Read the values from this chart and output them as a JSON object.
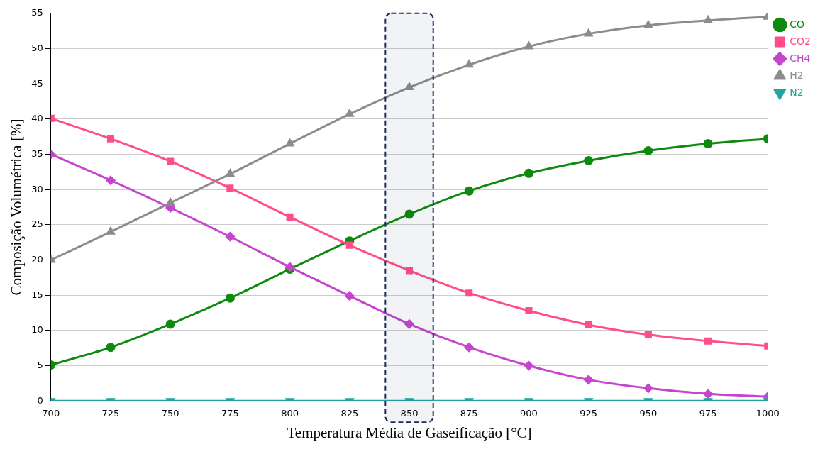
{
  "chart_data": {
    "type": "line",
    "xlabel": "Temperatura Média de Gaseificação [°C]",
    "ylabel": "Composição Volumétrica [%]",
    "x": [
      700,
      725,
      750,
      775,
      800,
      825,
      850,
      875,
      900,
      925,
      950,
      975,
      1000
    ],
    "xlim": [
      700,
      1000
    ],
    "xticks": [
      700,
      725,
      750,
      775,
      800,
      825,
      850,
      875,
      900,
      925,
      950,
      975,
      1000
    ],
    "ylim": [
      0,
      55
    ],
    "yticks": [
      0,
      5,
      10,
      15,
      20,
      25,
      30,
      35,
      40,
      45,
      50,
      55
    ],
    "grid": "y",
    "legend": "top right",
    "line_style": "solid",
    "series": [
      {
        "name": "CO",
        "color": "#0e8a0e",
        "marker": "circle",
        "values": [
          5.1,
          7.6,
          10.9,
          14.6,
          18.7,
          22.7,
          26.5,
          29.8,
          32.3,
          34.1,
          35.5,
          36.5,
          37.2
        ]
      },
      {
        "name": "CO2",
        "color": "#ff4d88",
        "marker": "square",
        "values": [
          40.1,
          37.2,
          34.0,
          30.2,
          26.1,
          22.1,
          18.5,
          15.3,
          12.8,
          10.8,
          9.4,
          8.5,
          7.8
        ]
      },
      {
        "name": "CH4",
        "color": "#c545cc",
        "marker": "diamond",
        "values": [
          35.0,
          31.3,
          27.4,
          23.3,
          19.0,
          14.9,
          10.9,
          7.6,
          5.0,
          3.0,
          1.8,
          1.0,
          0.6
        ]
      },
      {
        "name": "H2",
        "color": "#8c8c8c",
        "marker": "triangle",
        "values": [
          20.0,
          24.0,
          28.1,
          32.2,
          36.5,
          40.7,
          44.5,
          47.7,
          50.3,
          52.1,
          53.3,
          54.0,
          54.5
        ]
      },
      {
        "name": "N2",
        "color": "#1fa3a3",
        "marker": "triangle-down",
        "values": [
          0,
          0,
          0,
          0,
          0,
          0,
          0,
          0,
          0,
          0,
          0,
          0,
          0
        ]
      }
    ],
    "bands": [
      {
        "axis": "x",
        "from": 840,
        "to": 860,
        "color": "#1f2d5c"
      }
    ]
  }
}
